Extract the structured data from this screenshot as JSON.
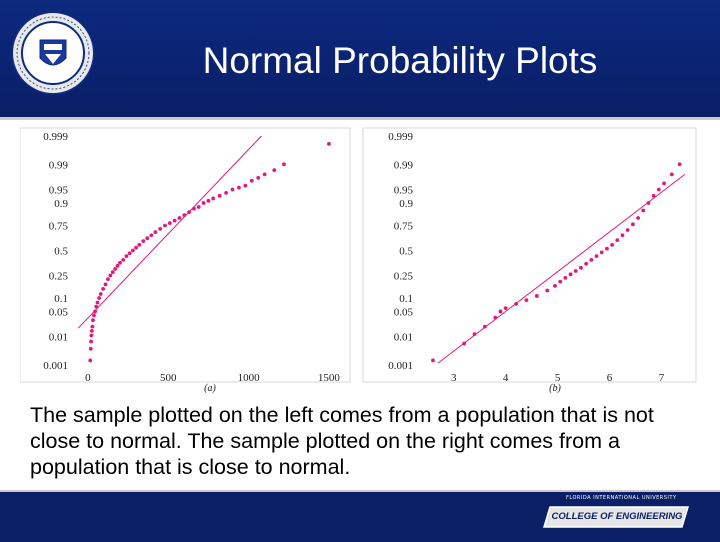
{
  "slide": {
    "title": "Normal Probability Plots",
    "caption": "The sample plotted on the left comes from a population that is not close to normal.  The sample plotted on the right comes from a population that is close to normal.",
    "seal_icon": "university-seal-icon",
    "footer_small": "FLORIDA INTERNATIONAL UNIVERSITY",
    "footer_badge": "COLLEGE OF ENGINEERING",
    "colors": {
      "header": "#0d2a80",
      "footer": "#0b1f66",
      "marker": "#e0197a"
    }
  },
  "chart_data": [
    {
      "type": "scatter",
      "panel_label": "(a)",
      "x_ticks": [
        0,
        500,
        1000,
        1500
      ],
      "xlim": [
        -80,
        1600
      ],
      "y_ticks": [
        0.001,
        0.01,
        0.05,
        0.1,
        0.25,
        0.5,
        0.75,
        0.9,
        0.95,
        0.99,
        0.999
      ],
      "y_tick_labels": [
        "0.001",
        "0.01",
        "0.05",
        "0.1",
        "0.25",
        "0.5",
        "0.75",
        "0.9",
        "0.95",
        "0.99",
        "0.999"
      ],
      "y_scale": "normal-probability",
      "reference_line": [
        [
          -60,
          0.018
        ],
        [
          1080,
          0.999
        ]
      ],
      "points": [
        [
          15,
          0.0015
        ],
        [
          18,
          0.004
        ],
        [
          20,
          0.007
        ],
        [
          22,
          0.011
        ],
        [
          25,
          0.015
        ],
        [
          28,
          0.02
        ],
        [
          32,
          0.03
        ],
        [
          38,
          0.04
        ],
        [
          45,
          0.05
        ],
        [
          52,
          0.065
        ],
        [
          60,
          0.08
        ],
        [
          70,
          0.1
        ],
        [
          80,
          0.12
        ],
        [
          95,
          0.15
        ],
        [
          110,
          0.18
        ],
        [
          125,
          0.22
        ],
        [
          140,
          0.25
        ],
        [
          155,
          0.28
        ],
        [
          170,
          0.31
        ],
        [
          185,
          0.34
        ],
        [
          200,
          0.37
        ],
        [
          220,
          0.4
        ],
        [
          240,
          0.44
        ],
        [
          260,
          0.47
        ],
        [
          280,
          0.5
        ],
        [
          300,
          0.53
        ],
        [
          320,
          0.56
        ],
        [
          345,
          0.6
        ],
        [
          370,
          0.63
        ],
        [
          395,
          0.66
        ],
        [
          420,
          0.69
        ],
        [
          450,
          0.72
        ],
        [
          480,
          0.75
        ],
        [
          510,
          0.77
        ],
        [
          540,
          0.79
        ],
        [
          570,
          0.81
        ],
        [
          600,
          0.83
        ],
        [
          630,
          0.85
        ],
        [
          660,
          0.87
        ],
        [
          690,
          0.88
        ],
        [
          720,
          0.9
        ],
        [
          750,
          0.91
        ],
        [
          780,
          0.92
        ],
        [
          820,
          0.93
        ],
        [
          860,
          0.94
        ],
        [
          900,
          0.95
        ],
        [
          940,
          0.955
        ],
        [
          980,
          0.96
        ],
        [
          1020,
          0.97
        ],
        [
          1060,
          0.975
        ],
        [
          1100,
          0.98
        ],
        [
          1160,
          0.985
        ],
        [
          1220,
          0.99
        ],
        [
          1500,
          0.998
        ]
      ]
    },
    {
      "type": "scatter",
      "panel_label": "(b)",
      "x_ticks": [
        3,
        4,
        5,
        6,
        7
      ],
      "xlim": [
        2.35,
        7.55
      ],
      "y_ticks": [
        0.001,
        0.01,
        0.05,
        0.1,
        0.25,
        0.5,
        0.75,
        0.9,
        0.95,
        0.99,
        0.999
      ],
      "y_tick_labels": [
        "0.001",
        "0.01",
        "0.05",
        "0.1",
        "0.25",
        "0.5",
        "0.75",
        "0.9",
        "0.95",
        "0.99",
        "0.999"
      ],
      "y_scale": "normal-probability",
      "reference_line": [
        [
          2.7,
          0.0012
        ],
        [
          7.45,
          0.98
        ]
      ],
      "points": [
        [
          2.6,
          0.0015
        ],
        [
          3.2,
          0.006
        ],
        [
          3.4,
          0.012
        ],
        [
          3.6,
          0.02
        ],
        [
          3.8,
          0.035
        ],
        [
          3.9,
          0.05
        ],
        [
          4.0,
          0.06
        ],
        [
          4.2,
          0.075
        ],
        [
          4.4,
          0.09
        ],
        [
          4.6,
          0.11
        ],
        [
          4.8,
          0.14
        ],
        [
          4.95,
          0.17
        ],
        [
          5.05,
          0.2
        ],
        [
          5.15,
          0.23
        ],
        [
          5.25,
          0.26
        ],
        [
          5.35,
          0.29
        ],
        [
          5.45,
          0.32
        ],
        [
          5.55,
          0.36
        ],
        [
          5.65,
          0.4
        ],
        [
          5.75,
          0.44
        ],
        [
          5.85,
          0.48
        ],
        [
          5.95,
          0.52
        ],
        [
          6.05,
          0.56
        ],
        [
          6.15,
          0.61
        ],
        [
          6.25,
          0.66
        ],
        [
          6.35,
          0.71
        ],
        [
          6.45,
          0.76
        ],
        [
          6.55,
          0.81
        ],
        [
          6.65,
          0.86
        ],
        [
          6.75,
          0.9
        ],
        [
          6.85,
          0.93
        ],
        [
          6.95,
          0.95
        ],
        [
          7.05,
          0.965
        ],
        [
          7.2,
          0.98
        ],
        [
          7.35,
          0.99
        ]
      ]
    }
  ]
}
